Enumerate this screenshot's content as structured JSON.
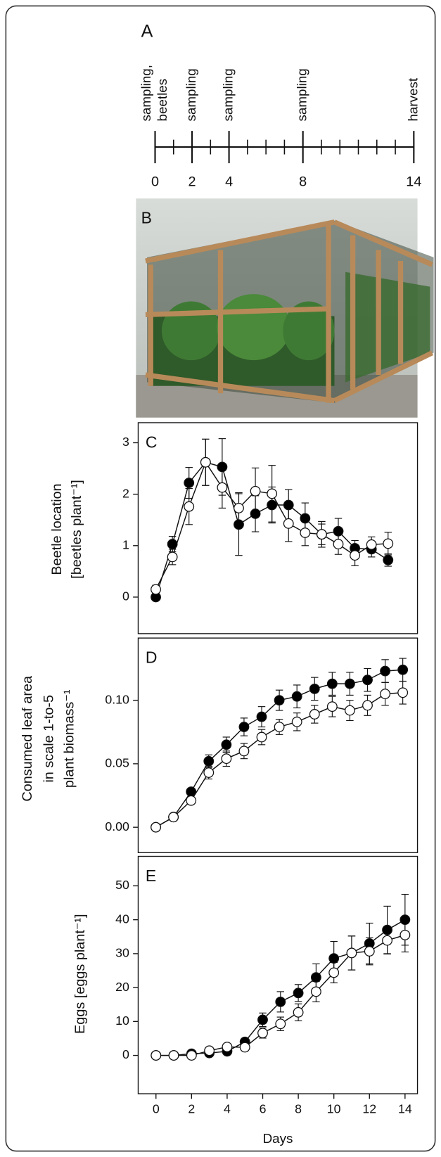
{
  "panel_a": {
    "label": "A",
    "xlim": [
      0,
      14
    ],
    "xticks": [
      0,
      2,
      4,
      8,
      14
    ],
    "events": [
      {
        "day": 0,
        "lines": [
          "sampling,",
          "beetles"
        ]
      },
      {
        "day": 2,
        "lines": [
          "sampling"
        ]
      },
      {
        "day": 4,
        "lines": [
          "sampling"
        ]
      },
      {
        "day": 8,
        "lines": [
          "sampling"
        ]
      },
      {
        "day": 14,
        "lines": [
          "harvest"
        ]
      }
    ]
  },
  "panel_b": {
    "label": "B"
  },
  "chart_data": [
    {
      "type": "line",
      "label": "C",
      "ylabel": [
        "Beetle location",
        "[beetles plant⁻¹]"
      ],
      "x": [
        0,
        1,
        2,
        3,
        4,
        5,
        6,
        7,
        8,
        9,
        10,
        11,
        12,
        13,
        14
      ],
      "ylim": [
        -0.71,
        3.39
      ],
      "yticks": [
        0,
        1,
        2,
        3
      ],
      "series": [
        {
          "color": "#000000",
          "values": [
            0,
            1.03,
            2.22,
            2.62,
            2.53,
            1.41,
            1.62,
            1.79,
            1.79,
            1.53,
            1.22,
            1.28,
            0.95,
            0.93,
            0.72
          ],
          "errors": [
            0.05,
            0.15,
            0.3,
            0.45,
            0.55,
            0.6,
            0.35,
            0.35,
            0.3,
            0.3,
            0.25,
            0.25,
            0.15,
            0.15,
            0.12
          ]
        },
        {
          "color": "#ffffff",
          "values": [
            0.15,
            0.78,
            1.76,
            2.62,
            2.13,
            1.73,
            2.06,
            2.01,
            1.43,
            1.25,
            1.22,
            1.03,
            0.81,
            1.02,
            1.04
          ],
          "errors": [
            0.08,
            0.15,
            0.35,
            0.45,
            0.4,
            0.3,
            0.45,
            0.55,
            0.35,
            0.25,
            0.2,
            0.2,
            0.2,
            0.15,
            0.22
          ]
        }
      ]
    },
    {
      "type": "line",
      "label": "D",
      "ylabel": [
        "Consumed leaf area",
        "in scale 1-to-5",
        "plant biomass⁻¹"
      ],
      "x": [
        0,
        1,
        2,
        3,
        4,
        5,
        6,
        7,
        8,
        9,
        10,
        11,
        12,
        13,
        14
      ],
      "ylim": [
        -0.02,
        0.149
      ],
      "yticks": [
        {
          "value": 0,
          "label": "0.00"
        },
        {
          "value": 0.05,
          "label": "0.05"
        },
        {
          "value": 0.1,
          "label": "0.10"
        }
      ],
      "series": [
        {
          "color": "#000000",
          "values": [
            0,
            0.008,
            0.028,
            0.052,
            0.065,
            0.079,
            0.087,
            0.1,
            0.103,
            0.109,
            0.113,
            0.113,
            0.116,
            0.123,
            0.124
          ],
          "errors": [
            0,
            0.001,
            0.002,
            0.005,
            0.006,
            0.007,
            0.008,
            0.008,
            0.009,
            0.009,
            0.009,
            0.009,
            0.009,
            0.009,
            0.009
          ]
        },
        {
          "color": "#ffffff",
          "values": [
            0,
            0.008,
            0.021,
            0.043,
            0.054,
            0.06,
            0.071,
            0.079,
            0.083,
            0.089,
            0.095,
            0.092,
            0.096,
            0.105,
            0.106
          ],
          "errors": [
            0,
            0.001,
            0.002,
            0.005,
            0.006,
            0.006,
            0.006,
            0.006,
            0.007,
            0.007,
            0.008,
            0.008,
            0.008,
            0.009,
            0.009
          ]
        }
      ]
    },
    {
      "type": "line",
      "label": "E",
      "ylabel": [
        "Eggs [eggs plant⁻¹]"
      ],
      "xlabel": "Days",
      "x": [
        0,
        1,
        2,
        3,
        4,
        5,
        6,
        7,
        8,
        9,
        10,
        11,
        12,
        13,
        14
      ],
      "xlim": [
        -1,
        14.7
      ],
      "xticks": [
        0,
        2,
        4,
        6,
        8,
        10,
        12,
        14
      ],
      "ylim": [
        -11.3,
        58.7
      ],
      "yticks": [
        0,
        10,
        20,
        30,
        40,
        50
      ],
      "series": [
        {
          "color": "#000000",
          "values": [
            0,
            0,
            0.5,
            0.7,
            1.2,
            4,
            10.5,
            15.8,
            18.4,
            23,
            28.6,
            30.2,
            33,
            37,
            40
          ],
          "errors": [
            0.3,
            0.3,
            0.5,
            0.5,
            0.8,
            1,
            2,
            3,
            2.5,
            4,
            5,
            5,
            6,
            7,
            7.5
          ]
        },
        {
          "color": "#ffffff",
          "values": [
            0,
            0,
            0,
            1.4,
            2.5,
            2.4,
            6.6,
            9.3,
            12.7,
            18.8,
            24.4,
            30.2,
            30.7,
            33.9,
            35.5
          ],
          "errors": [
            0.3,
            0.3,
            0.5,
            0.5,
            0.8,
            1,
            1.5,
            2,
            2.5,
            3,
            3,
            5,
            4,
            4,
            5
          ]
        }
      ]
    }
  ]
}
